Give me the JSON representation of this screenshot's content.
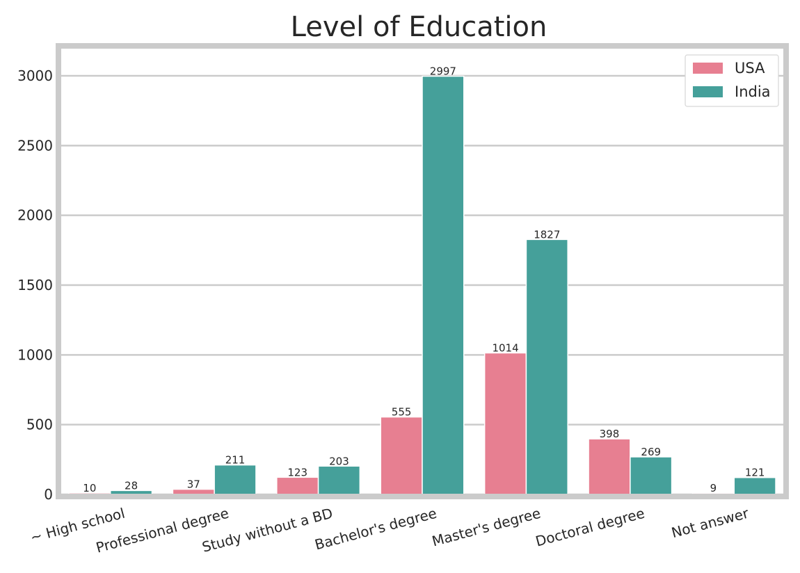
{
  "chart_data": {
    "type": "bar",
    "title": "Level of Education",
    "xlabel": "",
    "ylabel": "",
    "categories": [
      "~ High school",
      "Professional degree",
      "Study without a BD",
      "Bachelor's degree",
      "Master's degree",
      "Doctoral degree",
      "Not answer"
    ],
    "series": [
      {
        "name": "USA",
        "color": "#e77f91",
        "values": [
          10,
          37,
          123,
          555,
          1014,
          398,
          9
        ]
      },
      {
        "name": "India",
        "color": "#45a09a",
        "values": [
          28,
          211,
          203,
          2997,
          1827,
          269,
          121
        ]
      }
    ],
    "ylim": [
      0,
      3200
    ],
    "yticks": [
      0,
      500,
      1000,
      1500,
      2000,
      2500,
      3000
    ],
    "grid": true,
    "legend_position": "top-right",
    "axes_edge_color": "#cbcbcb",
    "grid_color": "#cbcbcb"
  }
}
